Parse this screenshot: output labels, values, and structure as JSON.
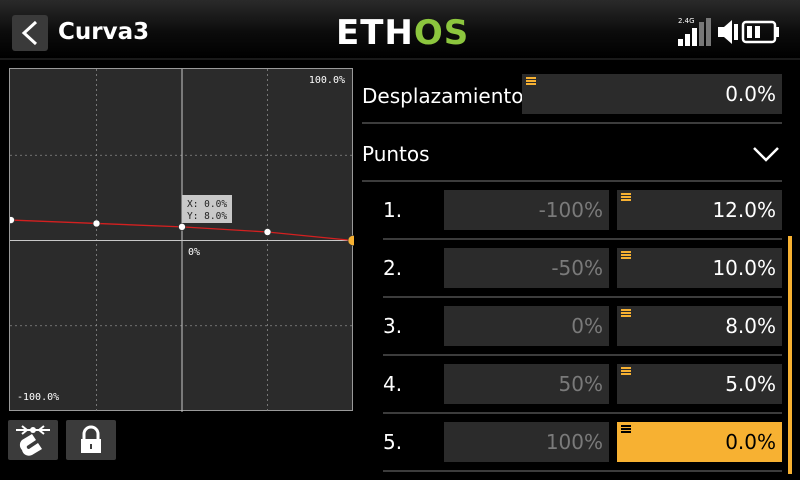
{
  "header": {
    "title": "Curva3",
    "brand_part1": "ETH",
    "brand_part2": "OS",
    "rf_label": "2.4G"
  },
  "graph": {
    "top_label": "100.0%",
    "bottom_label": "-100.0%",
    "center_label": "0%",
    "tooltip_x": "X:  0.0%",
    "tooltip_y": "Y:  8.0%",
    "curve_color": "#d42020",
    "highlight_color": "#f7b132"
  },
  "chart_data": {
    "type": "line",
    "x": [
      -100,
      -50,
      0,
      50,
      100
    ],
    "values": [
      12.0,
      10.0,
      8.0,
      5.0,
      0.0
    ],
    "xlim": [
      -100,
      100
    ],
    "ylim": [
      -100,
      100
    ],
    "grid": true
  },
  "offset": {
    "label": "Desplazamiento",
    "value": "0.0%"
  },
  "points": {
    "label": "Puntos",
    "items": [
      {
        "index": "1.",
        "x": "-100%",
        "y": "12.0%"
      },
      {
        "index": "2.",
        "x": "-50%",
        "y": "10.0%"
      },
      {
        "index": "3.",
        "x": "0%",
        "y": "8.0%"
      },
      {
        "index": "4.",
        "x": "50%",
        "y": "5.0%"
      },
      {
        "index": "5.",
        "x": "100%",
        "y": "0.0%"
      }
    ]
  },
  "colors": {
    "accent": "#f7b132",
    "brand_green": "#8cc63e"
  },
  "icons": {
    "back": "chevron-left-icon",
    "magnet": "magnet-icon",
    "lock": "lock-icon",
    "signal": "signal-icon",
    "volume": "volume-icon",
    "battery": "battery-icon",
    "collapse": "chevron-down-icon"
  }
}
